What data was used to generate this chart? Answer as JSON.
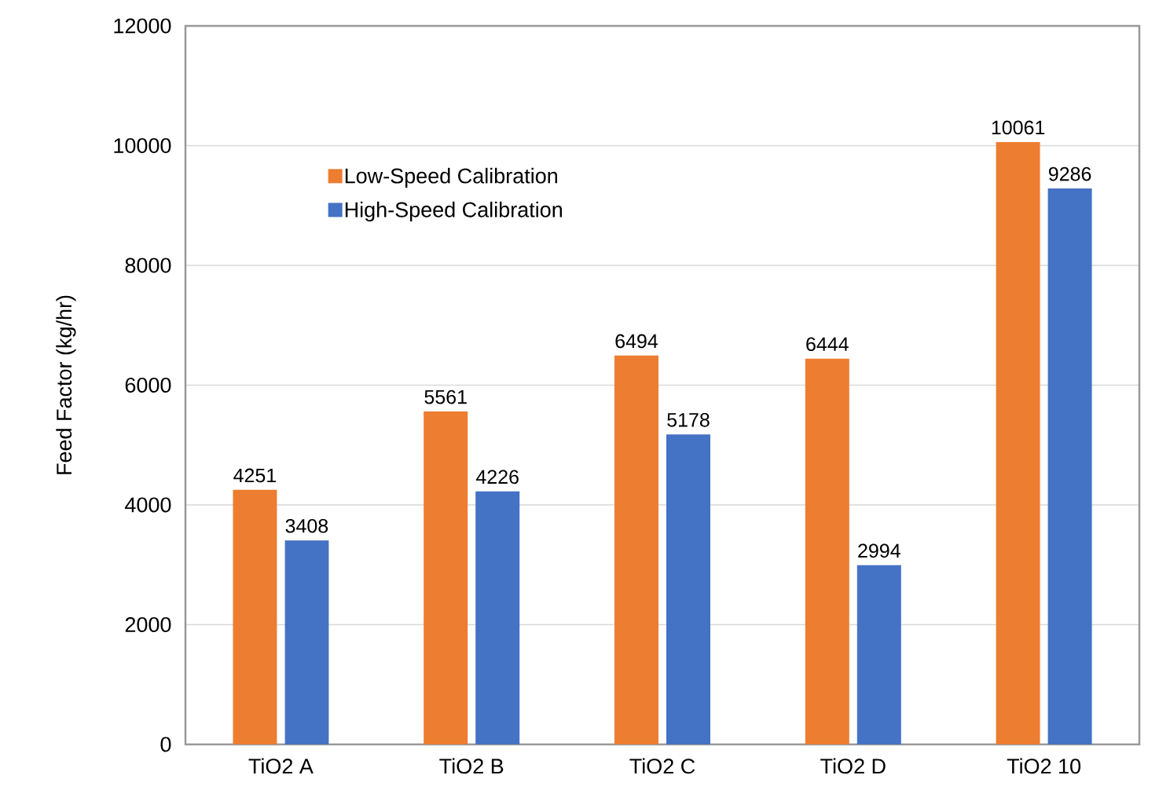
{
  "chart_data": {
    "type": "bar",
    "ylabel": "Feed Factor (kg/hr)",
    "categories": [
      "TiO2 A",
      "TiO2 B",
      "TiO2 C",
      "TiO2 D",
      "TiO2 10"
    ],
    "series": [
      {
        "name": "Low-Speed Calibration",
        "color": "#ed7d31",
        "values": [
          4251,
          5561,
          6494,
          6444,
          10061
        ]
      },
      {
        "name": "High-Speed Calibration",
        "color": "#4472c4",
        "values": [
          3408,
          4226,
          5178,
          2994,
          9286
        ]
      }
    ],
    "ylim": [
      0,
      12000
    ],
    "yticks": [
      0,
      2000,
      4000,
      6000,
      8000,
      10000,
      12000
    ],
    "grid": "y",
    "legend": "top left",
    "data_labels": true
  }
}
